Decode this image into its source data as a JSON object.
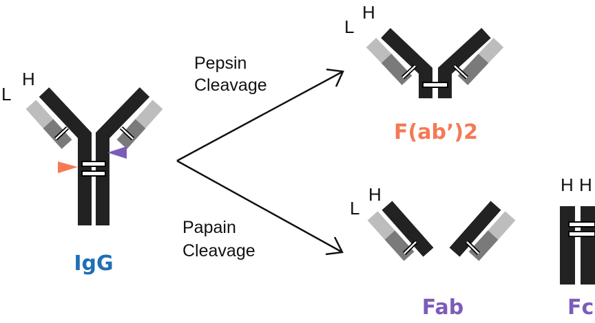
{
  "igg": {
    "name": "IgG",
    "chain_light": "L",
    "chain_heavy": "H"
  },
  "pepsin_step": {
    "line1": "Pepsin",
    "line2": "Cleavage"
  },
  "papain_step": {
    "line1": "Papain",
    "line2": "Cleavage"
  },
  "fab2": {
    "name": "F(ab’)2",
    "chain_light": "L",
    "chain_heavy": "H"
  },
  "fab": {
    "name": "Fab",
    "chain_light": "L",
    "chain_heavy": "H"
  },
  "fc": {
    "name": "Fc",
    "chain_heavy_1": "H",
    "chain_heavy_2": "H"
  },
  "colors": {
    "heavy_chain": "#222222",
    "light_chain_constant": "#7a7a7a",
    "light_chain_variable": "#bdbdbd",
    "pepsin_site": "#f47a55",
    "papain_site": "#7b5cb8",
    "igg_label": "#1f6fb5",
    "fab2_label": "#f47a55",
    "fab_label": "#7b5cb8",
    "fc_label": "#7b5cb8"
  }
}
